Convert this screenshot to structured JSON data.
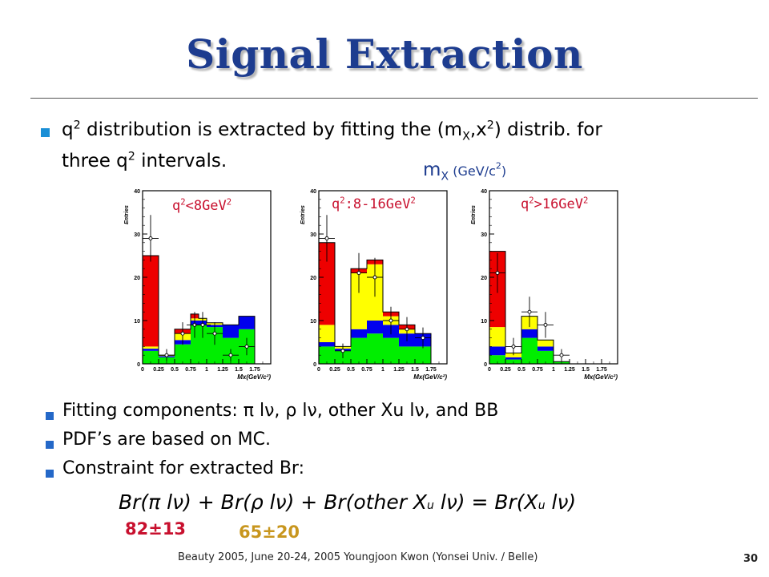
{
  "title": "Signal Extraction",
  "bullet1": {
    "line1_a": "q",
    "line1_sup": "2",
    "line1_b": " distribution is extracted by fitting the (m",
    "line1_sub": "X",
    "line1_c": ",x",
    "line1_sup2": "2",
    "line1_d": ") distrib. for",
    "line2_a": "three q",
    "line2_sup": "2",
    "line2_b": " intervals."
  },
  "mx_label": {
    "main": "m",
    "sub": "X",
    "unit": " (GeV/c",
    "unit_sup": "2",
    "unit_end": ")"
  },
  "panels": [
    {
      "label_a": "q",
      "label_sup": "2",
      "label_b": "<8GeV",
      "label_sup2": "2"
    },
    {
      "label_a": "q",
      "label_sup": "2",
      "label_b": ":8-16GeV",
      "label_sup2": "2"
    },
    {
      "label_a": "q",
      "label_sup": "2",
      "label_b": ">16GeV",
      "label_sup2": "2"
    }
  ],
  "bullets2": [
    {
      "text": "Fitting components: π lν,  ρ lν, other Xu lν, and BB"
    },
    {
      "text": "PDF’s are based on MC."
    },
    {
      "text": "Constraint for extracted Br:"
    }
  ],
  "formula": {
    "p1": "Br(π lν) + Br(ρ lν) + Br(other X",
    "sub1": "u",
    "p2": " lν) = Br(X",
    "sub2": "u",
    "p3": " lν)"
  },
  "values": {
    "pi": "82±13",
    "rho": "65±20",
    "pi_color": "#c8102e",
    "rho_color": "#c8961e"
  },
  "footer": "Beauty 2005, June 20-24, 2005     Youngjoon Kwon (Yonsei Univ. / Belle)",
  "page_number": "30",
  "chart_data": [
    {
      "type": "bar",
      "stacked": true,
      "title": "",
      "xlabel": "Mx(GeV/c²)",
      "ylabel": "Entries",
      "xlim": [
        0,
        2.0
      ],
      "ylim": [
        0,
        40
      ],
      "xticks": [
        "0",
        "0.25",
        "0.5",
        "0.75",
        "1",
        "1.25",
        "1.5",
        "1.75"
      ],
      "yticks": [
        "0",
        "10",
        "20",
        "30",
        "40"
      ],
      "bin_edges": [
        0,
        0.25,
        0.5,
        0.75,
        0.875,
        1.0,
        1.25,
        1.5,
        1.75
      ],
      "series": [
        {
          "name": "green",
          "color": "#00ee00",
          "values": [
            3,
            1.5,
            4.5,
            9,
            9,
            8.5,
            6,
            8
          ]
        },
        {
          "name": "blue",
          "color": "#0000ee",
          "values": [
            0.5,
            0.3,
            1,
            1,
            1,
            0.5,
            3,
            3
          ]
        },
        {
          "name": "yellow",
          "color": "#ffff00",
          "values": [
            0.5,
            0.2,
            1.5,
            0.5,
            0.5,
            0.5,
            0,
            0
          ]
        },
        {
          "name": "red",
          "color": "#ee0000",
          "values": [
            21,
            0,
            1,
            1,
            0,
            0,
            0,
            0
          ]
        }
      ],
      "points": {
        "x": [
          0.125,
          0.375,
          0.625,
          0.8125,
          0.9375,
          1.125,
          1.375,
          1.625
        ],
        "y": [
          29,
          2,
          7,
          9,
          9,
          7,
          2,
          4
        ],
        "err": [
          5.4,
          1.4,
          2.6,
          3,
          3,
          2.6,
          1.4,
          2
        ]
      }
    },
    {
      "type": "bar",
      "stacked": true,
      "title": "",
      "xlabel": "Mx(GeV/c²)",
      "ylabel": "Entries",
      "xlim": [
        0,
        2.0
      ],
      "ylim": [
        0,
        40
      ],
      "xticks": [
        "0",
        "0.25",
        "0.5",
        "0.75",
        "1",
        "1.25",
        "1.5",
        "1.75"
      ],
      "yticks": [
        "0",
        "10",
        "20",
        "30",
        "40"
      ],
      "bin_edges": [
        0,
        0.25,
        0.5,
        0.75,
        1.0,
        1.25,
        1.5,
        1.75
      ],
      "series": [
        {
          "name": "green",
          "color": "#00ee00",
          "values": [
            4,
            3,
            6,
            7,
            6,
            4,
            4
          ]
        },
        {
          "name": "blue",
          "color": "#0000ee",
          "values": [
            1,
            0.5,
            2,
            3,
            3,
            3,
            3
          ]
        },
        {
          "name": "yellow",
          "color": "#ffff00",
          "values": [
            4,
            0.5,
            13,
            13,
            2,
            1,
            0
          ]
        },
        {
          "name": "red",
          "color": "#ee0000",
          "values": [
            19,
            0,
            1,
            1,
            1,
            1,
            0
          ]
        }
      ],
      "points": {
        "x": [
          0.125,
          0.375,
          0.625,
          0.875,
          1.125,
          1.375,
          1.625
        ],
        "y": [
          29,
          3,
          21,
          20,
          10,
          8,
          6
        ],
        "err": [
          5.4,
          1.7,
          4.6,
          4.5,
          3.2,
          2.8,
          2.4
        ]
      }
    },
    {
      "type": "bar",
      "stacked": true,
      "title": "",
      "xlabel": "Mx(GeV/c²)",
      "ylabel": "Entries",
      "xlim": [
        0,
        2.0
      ],
      "ylim": [
        0,
        40
      ],
      "xticks": [
        "0",
        "0.25",
        "0.5",
        "0.75",
        "1",
        "1.25",
        "1.5",
        "1.75"
      ],
      "yticks": [
        "0",
        "10",
        "20",
        "30",
        "40"
      ],
      "bin_edges": [
        0,
        0.25,
        0.5,
        0.75,
        1.0,
        1.25
      ],
      "series": [
        {
          "name": "green",
          "color": "#00ee00",
          "values": [
            2,
            1,
            6,
            3,
            0.5
          ]
        },
        {
          "name": "blue",
          "color": "#0000ee",
          "values": [
            2,
            0.5,
            2,
            1,
            0
          ]
        },
        {
          "name": "yellow",
          "color": "#ffff00",
          "values": [
            4.5,
            1,
            3,
            1.5,
            0
          ]
        },
        {
          "name": "red",
          "color": "#ee0000",
          "values": [
            17.5,
            0,
            0,
            0,
            0
          ]
        }
      ],
      "points": {
        "x": [
          0.125,
          0.375,
          0.625,
          0.875,
          1.125
        ],
        "y": [
          21,
          4,
          12,
          9,
          2
        ],
        "err": [
          4.6,
          2,
          3.5,
          3,
          1.4
        ]
      }
    }
  ]
}
